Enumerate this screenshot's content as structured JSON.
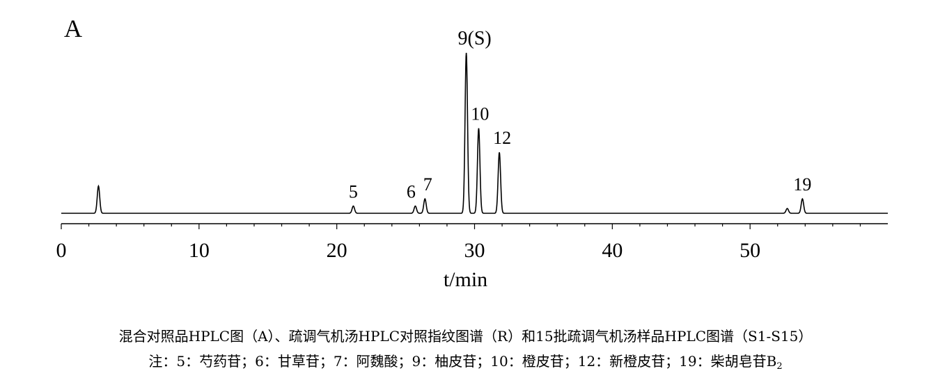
{
  "chart_data": {
    "type": "line",
    "panel_label": "A",
    "xlabel": "t/min",
    "xlim": [
      0,
      60
    ],
    "x_ticks": [
      0,
      10,
      20,
      30,
      40,
      50
    ],
    "x_minor_step": 2,
    "peaks": [
      {
        "label": "",
        "x": 2.7,
        "height": 0.17
      },
      {
        "label": "5",
        "x": 21.2,
        "height": 0.045
      },
      {
        "label": "6",
        "x": 25.7,
        "height": 0.045
      },
      {
        "label": "7",
        "x": 26.4,
        "height": 0.09
      },
      {
        "label": "9(S)",
        "x": 29.4,
        "height": 1.0
      },
      {
        "label": "10",
        "x": 30.3,
        "height": 0.53
      },
      {
        "label": "12",
        "x": 31.8,
        "height": 0.38
      },
      {
        "label": "",
        "x": 52.7,
        "height": 0.03
      },
      {
        "label": "19",
        "x": 53.8,
        "height": 0.09
      }
    ]
  },
  "caption": {
    "line1": "混合对照品HPLC图（A）、疏调气机汤HPLC对照指纹图谱（R）和15批疏调气机汤样品HPLC图谱（S1-S15）",
    "line2": "注：5：芍药苷；6：甘草苷；7：阿魏酸；9：柚皮苷；10：橙皮苷；12：新橙皮苷；19：柴胡皂苷B",
    "line2_subscript": "2"
  }
}
